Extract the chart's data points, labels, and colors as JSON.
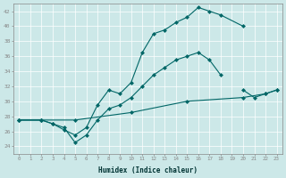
{
  "xlabel": "Humidex (Indice chaleur)",
  "background_color": "#cce8e8",
  "grid_color": "#ffffff",
  "line_color": "#006666",
  "xlim": [
    -0.5,
    23.5
  ],
  "ylim": [
    23,
    43
  ],
  "xticks": [
    0,
    1,
    2,
    3,
    4,
    5,
    6,
    7,
    8,
    9,
    10,
    11,
    12,
    13,
    14,
    15,
    16,
    17,
    18,
    19,
    20,
    21,
    22,
    23
  ],
  "yticks": [
    24,
    26,
    28,
    30,
    32,
    34,
    36,
    38,
    40,
    42
  ],
  "line1_x": [
    0,
    2,
    3,
    4,
    5,
    6,
    7,
    8,
    9,
    10,
    11,
    12,
    13,
    14,
    15,
    16,
    17,
    18,
    20
  ],
  "line1_y": [
    27.5,
    27.5,
    27.0,
    26.2,
    25.5,
    26.5,
    29.5,
    31.5,
    31.0,
    32.5,
    36.5,
    39.0,
    39.5,
    40.5,
    41.2,
    42.5,
    42.0,
    41.5,
    40.0
  ],
  "line2_x": [
    0,
    2,
    3,
    4,
    5,
    6,
    7,
    8,
    9,
    10,
    11,
    12,
    13,
    14,
    15,
    16,
    17,
    18,
    19,
    20,
    21,
    22,
    23
  ],
  "line2_y": [
    27.5,
    27.5,
    27.0,
    26.5,
    24.5,
    25.5,
    27.5,
    29.0,
    29.5,
    30.5,
    32.0,
    33.5,
    34.5,
    35.5,
    36.0,
    36.5,
    35.5,
    33.5,
    null,
    31.5,
    30.5,
    31.0,
    31.5
  ],
  "line3_x": [
    0,
    2,
    5,
    10,
    15,
    20,
    22,
    23
  ],
  "line3_y": [
    27.5,
    27.5,
    27.5,
    28.5,
    30.0,
    30.5,
    31.0,
    31.5
  ]
}
